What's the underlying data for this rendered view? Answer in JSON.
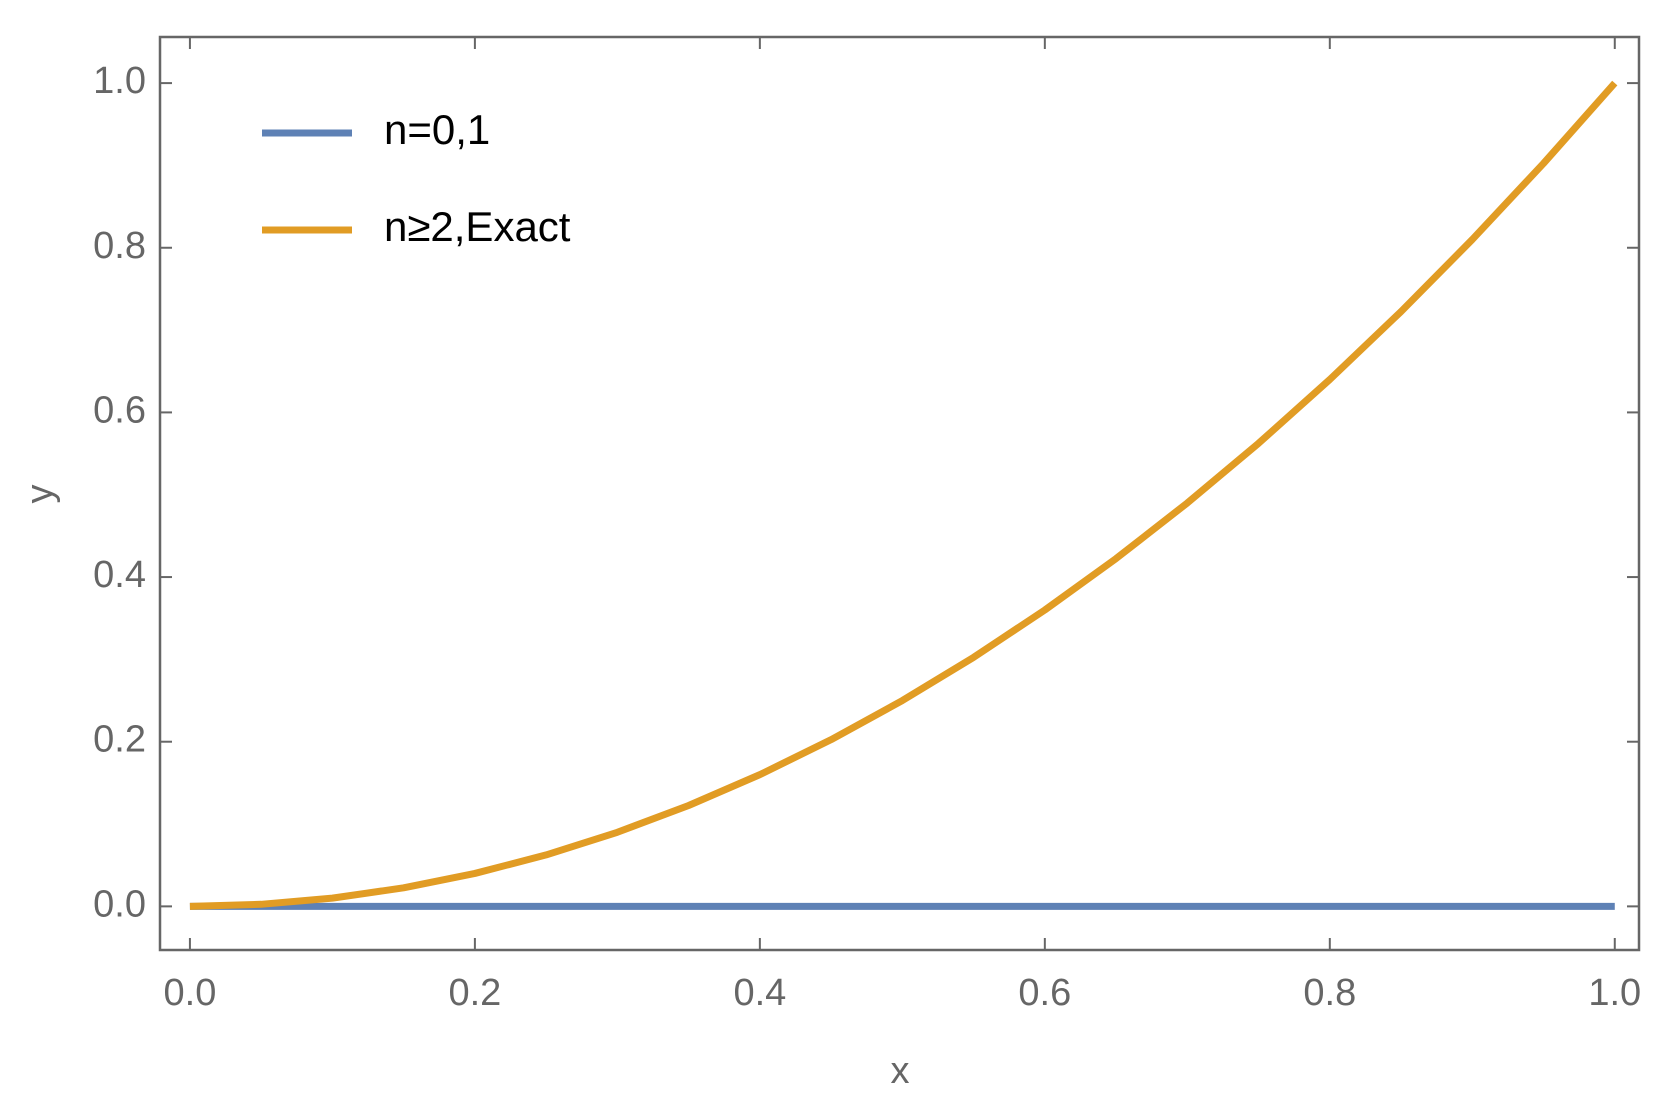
{
  "chart_data": {
    "type": "line",
    "xlabel": "x",
    "ylabel": "y",
    "x": [
      0,
      0.05,
      0.1,
      0.15,
      0.2,
      0.25,
      0.3,
      0.35,
      0.4,
      0.45,
      0.5,
      0.55,
      0.6,
      0.65,
      0.7,
      0.75,
      0.8,
      0.85,
      0.9,
      0.95,
      1
    ],
    "series": [
      {
        "name": "n=0,1",
        "color": "#5e81b5",
        "values": [
          0,
          0,
          0,
          0,
          0,
          0,
          0,
          0,
          0,
          0,
          0,
          0,
          0,
          0,
          0,
          0,
          0,
          0,
          0,
          0,
          0
        ]
      },
      {
        "name": "n≥2,Exact",
        "color": "#e19c24",
        "values": [
          0,
          0.0025,
          0.01,
          0.0225,
          0.04,
          0.0625,
          0.09,
          0.1225,
          0.16,
          0.2025,
          0.25,
          0.3025,
          0.36,
          0.4225,
          0.49,
          0.5625,
          0.64,
          0.7225,
          0.81,
          0.9025,
          1
        ]
      }
    ],
    "xlim": [
      -0.021,
      1.017
    ],
    "ylim": [
      -0.053,
      1.056
    ],
    "xticks": [
      {
        "value": 0,
        "label": "0.0"
      },
      {
        "value": 0.2,
        "label": "0.2"
      },
      {
        "value": 0.4,
        "label": "0.4"
      },
      {
        "value": 0.6,
        "label": "0.6"
      },
      {
        "value": 0.8,
        "label": "0.8"
      },
      {
        "value": 1,
        "label": "1.0"
      }
    ],
    "yticks": [
      {
        "value": 0,
        "label": "0.0"
      },
      {
        "value": 0.2,
        "label": "0.2"
      },
      {
        "value": 0.4,
        "label": "0.4"
      },
      {
        "value": 0.6,
        "label": "0.6"
      },
      {
        "value": 0.8,
        "label": "0.8"
      },
      {
        "value": 1,
        "label": "1.0"
      }
    ],
    "legend": "upper left",
    "grid": false
  }
}
